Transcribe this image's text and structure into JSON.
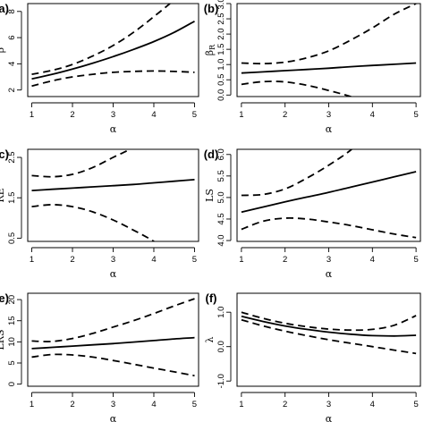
{
  "chart_data": [
    {
      "panel": "(a)",
      "type": "line",
      "xlabel": "α",
      "ylabel": "β",
      "xlim": [
        0.9,
        5.1
      ],
      "ylim": [
        1.5,
        8.6
      ],
      "xticks": [
        "1",
        "2",
        "3",
        "4",
        "5"
      ],
      "xtick_values": [
        1,
        2,
        3,
        4,
        5
      ],
      "yticks": [
        "2",
        "4",
        "6",
        "8"
      ],
      "ytick_values": [
        2,
        4,
        6,
        8
      ],
      "x": [
        1,
        1.5,
        2,
        2.5,
        3,
        3.5,
        4,
        4.5,
        5
      ],
      "series": [
        {
          "role": "fit",
          "style": "solid",
          "values": [
            2.85,
            3.2,
            3.6,
            4.05,
            4.55,
            5.1,
            5.7,
            6.4,
            7.25
          ]
        },
        {
          "role": "upper",
          "style": "dashed",
          "values": [
            3.2,
            3.5,
            3.95,
            4.6,
            5.4,
            6.4,
            7.6,
            8.9,
            null
          ]
        },
        {
          "role": "lower",
          "style": "dashed",
          "values": [
            2.3,
            2.7,
            3.0,
            3.2,
            3.35,
            3.42,
            3.45,
            3.42,
            3.35
          ]
        }
      ]
    },
    {
      "panel": "(b)",
      "type": "line",
      "xlabel": "α",
      "ylabel": "βR",
      "xlim": [
        0.9,
        5.1
      ],
      "ylim": [
        -0.05,
        3.0
      ],
      "xticks": [
        "1",
        "2",
        "3",
        "4",
        "5"
      ],
      "xtick_values": [
        1,
        2,
        3,
        4,
        5
      ],
      "yticks": [
        "0.0",
        "0.5",
        "1.0",
        "1.5",
        "2.0",
        "2.5",
        "3.0"
      ],
      "ytick_values": [
        0,
        0.5,
        1,
        1.5,
        2,
        2.5,
        3
      ],
      "x": [
        1,
        1.5,
        2,
        2.5,
        3,
        3.5,
        4,
        4.5,
        5
      ],
      "series": [
        {
          "role": "fit",
          "style": "solid",
          "values": [
            0.72,
            0.76,
            0.8,
            0.84,
            0.88,
            0.93,
            0.97,
            1.01,
            1.05
          ]
        },
        {
          "role": "upper",
          "style": "dashed",
          "values": [
            1.05,
            1.03,
            1.08,
            1.22,
            1.45,
            1.8,
            2.2,
            2.65,
            3.0
          ]
        },
        {
          "role": "lower",
          "style": "dashed",
          "values": [
            0.35,
            0.44,
            0.43,
            0.32,
            0.15,
            -0.05,
            null,
            null,
            null
          ]
        }
      ]
    },
    {
      "panel": "(c)",
      "type": "line",
      "xlabel": "α",
      "ylabel": "RE",
      "xlim": [
        0.9,
        5.1
      ],
      "ylim": [
        0.42,
        2.7
      ],
      "xticks": [
        "1",
        "2",
        "3",
        "4",
        "5"
      ],
      "xtick_values": [
        1,
        2,
        3,
        4,
        5
      ],
      "yticks": [
        "0.5",
        "1.5",
        "2.5"
      ],
      "ytick_values": [
        0.5,
        1.5,
        2.5
      ],
      "x": [
        1,
        1.5,
        2,
        2.5,
        3,
        3.5,
        4,
        4.5,
        5
      ],
      "series": [
        {
          "role": "fit",
          "style": "solid",
          "values": [
            1.68,
            1.71,
            1.74,
            1.77,
            1.8,
            1.83,
            1.87,
            1.91,
            1.95
          ]
        },
        {
          "role": "upper",
          "style": "dashed",
          "values": [
            2.05,
            2.02,
            2.08,
            2.25,
            2.5,
            2.75,
            null,
            null,
            null
          ]
        },
        {
          "role": "lower",
          "style": "dashed",
          "values": [
            1.28,
            1.33,
            1.28,
            1.15,
            0.95,
            0.7,
            0.42,
            null,
            null
          ]
        }
      ]
    },
    {
      "panel": "(d)",
      "type": "line",
      "xlabel": "α",
      "ylabel": "LS",
      "xlim": [
        0.9,
        5.1
      ],
      "ylim": [
        3.98,
        6.12
      ],
      "xticks": [
        "1",
        "2",
        "3",
        "4",
        "5"
      ],
      "xtick_values": [
        1,
        2,
        3,
        4,
        5
      ],
      "yticks": [
        "4.0",
        "4.5",
        "5.0",
        "5.5",
        "6.0"
      ],
      "ytick_values": [
        4,
        4.5,
        5,
        5.5,
        6
      ],
      "x": [
        1,
        1.5,
        2,
        2.5,
        3,
        3.5,
        4,
        4.5,
        5
      ],
      "series": [
        {
          "role": "fit",
          "style": "solid",
          "values": [
            4.66,
            4.78,
            4.9,
            5.01,
            5.12,
            5.24,
            5.36,
            5.48,
            5.6
          ]
        },
        {
          "role": "upper",
          "style": "dashed",
          "values": [
            5.05,
            5.07,
            5.2,
            5.45,
            5.75,
            6.1,
            null,
            null,
            null
          ]
        },
        {
          "role": "lower",
          "style": "dashed",
          "values": [
            4.26,
            4.45,
            4.52,
            4.5,
            4.43,
            4.35,
            4.25,
            4.15,
            4.07
          ]
        }
      ]
    },
    {
      "panel": "(e)",
      "type": "line",
      "xlabel": "α",
      "ylabel": "LRS",
      "xlim": [
        0.9,
        5.1
      ],
      "ylim": [
        -0.5,
        21.5
      ],
      "xticks": [
        "1",
        "2",
        "3",
        "4",
        "5"
      ],
      "xtick_values": [
        1,
        2,
        3,
        4,
        5
      ],
      "yticks": [
        "0",
        "5",
        "10",
        "15",
        "20"
      ],
      "ytick_values": [
        0,
        5,
        10,
        15,
        20
      ],
      "x": [
        1,
        1.5,
        2,
        2.5,
        3,
        3.5,
        4,
        4.5,
        5
      ],
      "series": [
        {
          "role": "fit",
          "style": "solid",
          "values": [
            8.4,
            8.7,
            9.0,
            9.3,
            9.6,
            9.95,
            10.3,
            10.7,
            11.0
          ]
        },
        {
          "role": "upper",
          "style": "dashed",
          "values": [
            10.2,
            10.1,
            10.8,
            12.0,
            13.5,
            15.0,
            16.7,
            18.5,
            20.2
          ]
        },
        {
          "role": "lower",
          "style": "dashed",
          "values": [
            6.4,
            7.0,
            6.9,
            6.4,
            5.6,
            4.7,
            3.8,
            2.9,
            2.0
          ]
        }
      ]
    },
    {
      "panel": "(f)",
      "type": "line",
      "xlabel": "α",
      "ylabel": "λ",
      "xlim": [
        0.9,
        5.1
      ],
      "ylim": [
        -1.15,
        1.55
      ],
      "xticks": [
        "1",
        "2",
        "3",
        "4",
        "5"
      ],
      "xtick_values": [
        1,
        2,
        3,
        4,
        5
      ],
      "yticks": [
        "-1.0",
        "0.0",
        "1.0"
      ],
      "ytick_values": [
        -1,
        0,
        1
      ],
      "x": [
        1,
        1.5,
        2,
        2.5,
        3,
        3.5,
        4,
        4.5,
        5
      ],
      "series": [
        {
          "role": "fit",
          "style": "solid",
          "values": [
            0.88,
            0.73,
            0.6,
            0.5,
            0.42,
            0.36,
            0.32,
            0.31,
            0.33
          ]
        },
        {
          "role": "upper",
          "style": "dashed",
          "values": [
            1.0,
            0.82,
            0.68,
            0.58,
            0.51,
            0.48,
            0.5,
            0.62,
            0.9
          ]
        },
        {
          "role": "lower",
          "style": "dashed",
          "values": [
            0.78,
            0.6,
            0.45,
            0.32,
            0.2,
            0.1,
            0.0,
            -0.1,
            -0.2
          ]
        }
      ]
    }
  ]
}
